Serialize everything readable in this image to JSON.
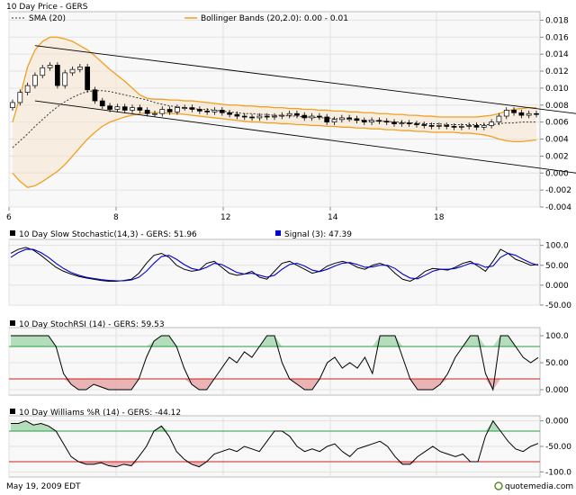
{
  "chart_data": [
    {
      "type": "candlestick",
      "title": "10 Day Price - GERS",
      "legend": [
        {
          "name": "SMA (20)",
          "style": "dotted",
          "color": "#333333"
        },
        {
          "name": "Bollinger Bands (20,2.0): 0.00 - 0.01",
          "style": "solid",
          "color": "#f0a020"
        }
      ],
      "x_tick_labels": [
        "6",
        "8",
        "12",
        "14",
        "18"
      ],
      "y_tick_labels": [
        "0.018",
        "0.016",
        "0.014",
        "0.012",
        "0.010",
        "0.008",
        "0.006",
        "0.004",
        "0.002",
        "0.000",
        "-0.002",
        "-0.004"
      ],
      "ylim": [
        -0.004,
        0.019
      ],
      "close_series": [
        0.0083,
        0.0095,
        0.0103,
        0.0115,
        0.0124,
        0.0127,
        0.0103,
        0.0118,
        0.0122,
        0.0125,
        0.0098,
        0.0085,
        0.0079,
        0.0075,
        0.0078,
        0.0074,
        0.0077,
        0.0074,
        0.007,
        0.007,
        0.0075,
        0.0072,
        0.0077,
        0.0077,
        0.0075,
        0.0073,
        0.0072,
        0.0074,
        0.0071,
        0.0069,
        0.0067,
        0.0066,
        0.0065,
        0.0067,
        0.0066,
        0.0067,
        0.0068,
        0.007,
        0.0068,
        0.0065,
        0.0067,
        0.0066,
        0.006,
        0.0063,
        0.0065,
        0.0064,
        0.0062,
        0.006,
        0.0062,
        0.0061,
        0.006,
        0.0058,
        0.0059,
        0.0058,
        0.0057,
        0.0056,
        0.0055,
        0.0056,
        0.0055,
        0.0054,
        0.0055,
        0.0056,
        0.0054,
        0.0056,
        0.006,
        0.0067,
        0.0074,
        0.0071,
        0.0068,
        0.007,
        0.0069
      ],
      "sma_series": [
        0.003,
        0.0038,
        0.0046,
        0.0055,
        0.0063,
        0.0071,
        0.0078,
        0.0084,
        0.0089,
        0.0093,
        0.0096,
        0.0097,
        0.0097,
        0.0096,
        0.0094,
        0.0092,
        0.009,
        0.0088,
        0.0086,
        0.0083,
        0.0081,
        0.0079,
        0.0078,
        0.0077,
        0.0076,
        0.0075,
        0.0075,
        0.0074,
        0.0073,
        0.0072,
        0.0071,
        0.007,
        0.007,
        0.0069,
        0.0069,
        0.0068,
        0.0068,
        0.0067,
        0.0067,
        0.0066,
        0.0066,
        0.0065,
        0.0065,
        0.0064,
        0.0064,
        0.0063,
        0.0063,
        0.0062,
        0.0062,
        0.0061,
        0.0061,
        0.006,
        0.006,
        0.0059,
        0.0059,
        0.0058,
        0.0058,
        0.0058,
        0.0057,
        0.0057,
        0.0057,
        0.0057,
        0.0057,
        0.0057,
        0.0057,
        0.0058,
        0.0059,
        0.0059,
        0.006,
        0.006,
        0.006
      ],
      "upper_band": [
        0.006,
        0.009,
        0.0125,
        0.0145,
        0.0155,
        0.016,
        0.016,
        0.0158,
        0.0155,
        0.015,
        0.0145,
        0.0138,
        0.013,
        0.0122,
        0.0115,
        0.0108,
        0.01,
        0.0092,
        0.0088,
        0.0087,
        0.0087,
        0.0086,
        0.0086,
        0.0085,
        0.0085,
        0.0084,
        0.0083,
        0.0082,
        0.0081,
        0.008,
        0.008,
        0.0079,
        0.0079,
        0.0078,
        0.0078,
        0.0077,
        0.0077,
        0.0076,
        0.0076,
        0.0075,
        0.0075,
        0.0074,
        0.0074,
        0.0073,
        0.0073,
        0.0072,
        0.0072,
        0.0071,
        0.0071,
        0.007,
        0.007,
        0.0069,
        0.0069,
        0.0068,
        0.0068,
        0.0067,
        0.0067,
        0.0066,
        0.0066,
        0.0066,
        0.0066,
        0.0066,
        0.0066,
        0.0067,
        0.0068,
        0.007,
        0.0073,
        0.0075,
        0.0076,
        0.0077,
        0.0077
      ],
      "lower_band": [
        0.0,
        -0.001,
        -0.0017,
        -0.0015,
        -0.001,
        -0.0004,
        0.0002,
        0.001,
        0.002,
        0.003,
        0.004,
        0.0048,
        0.0055,
        0.006,
        0.0063,
        0.0066,
        0.0068,
        0.007,
        0.0071,
        0.0071,
        0.0071,
        0.007,
        0.007,
        0.0069,
        0.0068,
        0.0067,
        0.0066,
        0.0065,
        0.0064,
        0.0063,
        0.0062,
        0.0061,
        0.006,
        0.006,
        0.0059,
        0.0059,
        0.0058,
        0.0058,
        0.0057,
        0.0057,
        0.0056,
        0.0056,
        0.0055,
        0.0055,
        0.0054,
        0.0054,
        0.0053,
        0.0053,
        0.0052,
        0.0052,
        0.0051,
        0.0051,
        0.005,
        0.005,
        0.0049,
        0.0049,
        0.0048,
        0.0048,
        0.0048,
        0.0048,
        0.0047,
        0.0047,
        0.0046,
        0.0045,
        0.0043,
        0.004,
        0.0038,
        0.0037,
        0.0037,
        0.0038,
        0.0039
      ]
    },
    {
      "type": "line",
      "title": "10 Day  Slow Stochastic(14,3) - GERS: 51.96",
      "legend": [
        {
          "name": "Signal (3): 47.39",
          "color": "#0000cc"
        }
      ],
      "y_tick_labels": [
        "100.0",
        "50.00",
        "0.000",
        "-50.00"
      ],
      "ylim": [
        -50,
        115
      ],
      "series": [
        {
          "values": [
            80,
            90,
            95,
            88,
            75,
            60,
            45,
            35,
            28,
            22,
            18,
            15,
            12,
            10,
            10,
            12,
            15,
            30,
            55,
            75,
            80,
            70,
            50,
            40,
            35,
            38,
            55,
            60,
            45,
            30,
            25,
            28,
            35,
            20,
            15,
            35,
            55,
            60,
            50,
            40,
            30,
            35,
            48,
            55,
            60,
            55,
            45,
            40,
            50,
            55,
            48,
            30,
            15,
            10,
            20,
            35,
            42,
            40,
            38,
            45,
            55,
            60,
            48,
            35,
            60,
            90,
            80,
            65,
            58,
            50,
            52
          ]
        },
        {
          "color": "#0000cc",
          "values": [
            70,
            82,
            90,
            90,
            82,
            70,
            55,
            42,
            32,
            25,
            20,
            17,
            14,
            12,
            11,
            11,
            13,
            20,
            35,
            55,
            72,
            75,
            65,
            52,
            42,
            38,
            45,
            55,
            52,
            42,
            32,
            28,
            30,
            25,
            20,
            25,
            40,
            52,
            55,
            48,
            38,
            34,
            40,
            48,
            55,
            57,
            52,
            45,
            46,
            50,
            50,
            42,
            28,
            18,
            16,
            25,
            35,
            40,
            40,
            42,
            48,
            55,
            53,
            45,
            48,
            70,
            80,
            75,
            65,
            56,
            50
          ]
        }
      ]
    },
    {
      "type": "line",
      "title": "10 Day StochRSI (14) - GERS: 59.53",
      "y_tick_labels": [
        "100.0",
        "50.00",
        "0.000"
      ],
      "ylim": [
        -10,
        115
      ],
      "reference_lines": [
        80,
        20
      ],
      "series": [
        {
          "values": [
            100,
            100,
            100,
            100,
            100,
            100,
            80,
            30,
            10,
            0,
            0,
            10,
            5,
            0,
            0,
            0,
            0,
            20,
            60,
            90,
            100,
            100,
            80,
            40,
            10,
            0,
            0,
            20,
            40,
            60,
            50,
            70,
            60,
            80,
            100,
            100,
            50,
            20,
            10,
            0,
            0,
            20,
            50,
            60,
            40,
            50,
            40,
            60,
            30,
            100,
            100,
            100,
            60,
            20,
            0,
            0,
            0,
            10,
            30,
            60,
            80,
            100,
            100,
            30,
            0,
            100,
            100,
            80,
            60,
            50,
            59.53
          ]
        }
      ]
    },
    {
      "type": "line",
      "title": "10 Day Williams %R (14) - GERS: -44.12",
      "y_tick_labels": [
        "0.000",
        "-50.00",
        "-100.0"
      ],
      "ylim": [
        -110,
        10
      ],
      "reference_lines": [
        -20,
        -80
      ],
      "series": [
        {
          "values": [
            -5,
            -5,
            0,
            -8,
            -5,
            -10,
            -20,
            -45,
            -70,
            -80,
            -85,
            -85,
            -82,
            -88,
            -90,
            -85,
            -88,
            -70,
            -50,
            -20,
            -10,
            -30,
            -60,
            -75,
            -85,
            -90,
            -80,
            -65,
            -60,
            -55,
            -60,
            -50,
            -55,
            -60,
            -40,
            -20,
            -20,
            -30,
            -50,
            -60,
            -55,
            -60,
            -50,
            -45,
            -60,
            -70,
            -55,
            -50,
            -45,
            -40,
            -50,
            -70,
            -85,
            -85,
            -70,
            -60,
            -50,
            -60,
            -65,
            -70,
            -65,
            -80,
            -80,
            -30,
            0,
            -20,
            -40,
            -55,
            -60,
            -50,
            -44.12
          ]
        }
      ]
    }
  ],
  "footer": {
    "date": "May 19, 2009 EDT",
    "brand": "quotemedia.com"
  }
}
